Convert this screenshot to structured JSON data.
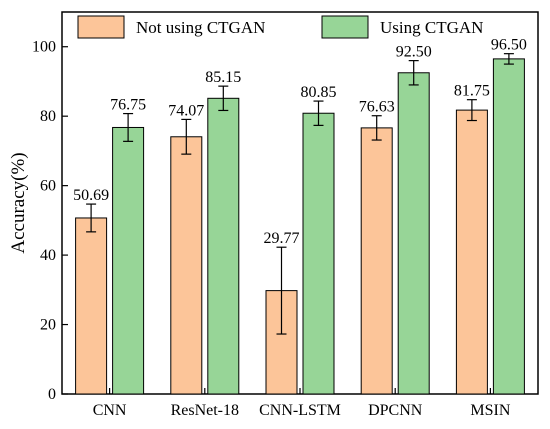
{
  "chart_data": {
    "type": "bar",
    "title": "",
    "xlabel": "",
    "ylabel": "Accuracy(%)",
    "ylim": [
      0,
      110
    ],
    "yticks": [
      0,
      20,
      40,
      60,
      80,
      100
    ],
    "categories": [
      "CNN",
      "ResNet-18",
      "CNN-LSTM",
      "DPCNN",
      "MSIN"
    ],
    "series": [
      {
        "name": "Not using CTGAN",
        "color": "#fcc599",
        "values": [
          50.69,
          74.07,
          29.77,
          76.63,
          81.75
        ],
        "labels": [
          "50.69",
          "74.07",
          "29.77",
          "76.63",
          "81.75"
        ],
        "errors": [
          4.0,
          5.0,
          12.5,
          3.5,
          3.0
        ]
      },
      {
        "name": "Using CTGAN",
        "color": "#97d597",
        "values": [
          76.75,
          85.15,
          80.85,
          92.5,
          96.5
        ],
        "labels": [
          "76.75",
          "85.15",
          "80.85",
          "92.50",
          "96.50"
        ],
        "errors": [
          4.0,
          3.5,
          3.5,
          3.5,
          1.5
        ]
      }
    ],
    "legend_position": "top",
    "grid": false
  }
}
